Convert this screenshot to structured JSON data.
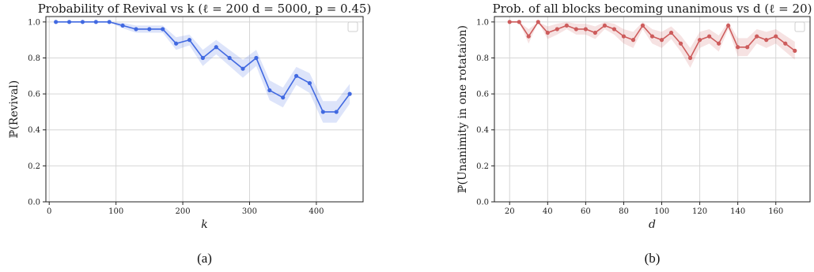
{
  "chart_data": [
    {
      "type": "line",
      "title": "Probability of Revival vs k (ℓ = 200 d = 5000, p = 0.45)",
      "xlabel": "k",
      "ylabel": "ℙ(Revival)",
      "caption": "(a)",
      "xlim": [
        -5,
        470
      ],
      "ylim": [
        0,
        1.03
      ],
      "xticks": [
        0,
        100,
        200,
        300,
        400
      ],
      "yticks": [
        0.0,
        0.2,
        0.4,
        0.6,
        0.8,
        1.0
      ],
      "xtick_labels": [
        "0",
        "100",
        "200",
        "300",
        "400"
      ],
      "ytick_labels": [
        "0.0",
        "0.2",
        "0.4",
        "0.6",
        "0.8",
        "1.0"
      ],
      "grid": true,
      "legend": "top-right (empty)",
      "color": "#4169e1",
      "series": [
        {
          "x": [
            10,
            30,
            50,
            70,
            90,
            110,
            130,
            150,
            170,
            190,
            210,
            230,
            250,
            270,
            290,
            310,
            330,
            350,
            370,
            390,
            410,
            430,
            450
          ],
          "y": [
            1.0,
            1.0,
            1.0,
            1.0,
            1.0,
            0.98,
            0.96,
            0.96,
            0.96,
            0.88,
            0.9,
            0.8,
            0.86,
            0.8,
            0.74,
            0.8,
            0.62,
            0.58,
            0.7,
            0.66,
            0.5,
            0.5,
            0.6
          ],
          "band": [
            0.0,
            0.0,
            0.0,
            0.0,
            0.0,
            0.015,
            0.02,
            0.02,
            0.02,
            0.035,
            0.03,
            0.045,
            0.04,
            0.045,
            0.05,
            0.045,
            0.055,
            0.055,
            0.05,
            0.055,
            0.06,
            0.06,
            0.055
          ]
        }
      ]
    },
    {
      "type": "line",
      "title": "Prob. of all blocks becoming unanimous vs d (ℓ = 20)",
      "xlabel": "d",
      "ylabel": "ℙ(Unanimity in one rotataion)",
      "caption": "(b)",
      "xlim": [
        12,
        178
      ],
      "ylim": [
        0,
        1.03
      ],
      "xticks": [
        20,
        40,
        60,
        80,
        100,
        120,
        140,
        160
      ],
      "yticks": [
        0.0,
        0.2,
        0.4,
        0.6,
        0.8,
        1.0
      ],
      "xtick_labels": [
        "20",
        "40",
        "60",
        "80",
        "100",
        "120",
        "140",
        "160"
      ],
      "ytick_labels": [
        "0.0",
        "0.2",
        "0.4",
        "0.6",
        "0.8",
        "1.0"
      ],
      "grid": true,
      "legend": "top-right (empty)",
      "color": "#cd5c5c",
      "series": [
        {
          "x": [
            20,
            25,
            30,
            35,
            40,
            45,
            50,
            55,
            60,
            65,
            70,
            75,
            80,
            85,
            90,
            95,
            100,
            105,
            110,
            115,
            120,
            125,
            130,
            135,
            140,
            145,
            150,
            155,
            160,
            165,
            170
          ],
          "y": [
            1.0,
            1.0,
            0.92,
            1.0,
            0.94,
            0.96,
            0.98,
            0.96,
            0.96,
            0.94,
            0.98,
            0.96,
            0.92,
            0.9,
            0.98,
            0.92,
            0.9,
            0.94,
            0.88,
            0.8,
            0.9,
            0.92,
            0.88,
            0.98,
            0.86,
            0.86,
            0.92,
            0.9,
            0.92,
            0.88,
            0.84
          ],
          "band": [
            0.0,
            0.0,
            0.04,
            0.0,
            0.035,
            0.03,
            0.02,
            0.03,
            0.03,
            0.035,
            0.02,
            0.03,
            0.04,
            0.045,
            0.02,
            0.04,
            0.045,
            0.035,
            0.045,
            0.055,
            0.045,
            0.04,
            0.045,
            0.02,
            0.05,
            0.05,
            0.04,
            0.045,
            0.04,
            0.045,
            0.05
          ]
        }
      ]
    }
  ]
}
